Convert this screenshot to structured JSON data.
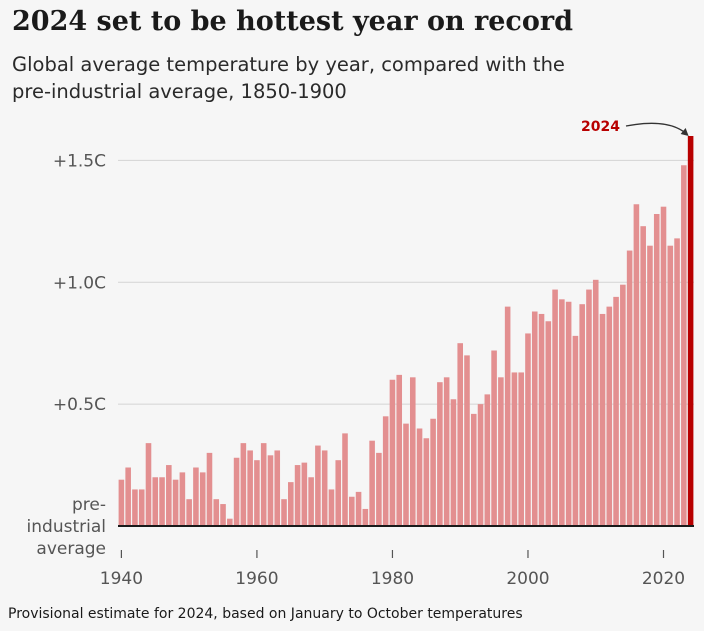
{
  "chart_data": {
    "type": "bar",
    "title": "2024 set to be hottest year on record",
    "subtitle_lines": [
      "Global average temperature by year, compared with the",
      "pre-industrial average, 1850-1900"
    ],
    "years": [
      1940,
      1941,
      1942,
      1943,
      1944,
      1945,
      1946,
      1947,
      1948,
      1949,
      1950,
      1951,
      1952,
      1953,
      1954,
      1955,
      1956,
      1957,
      1958,
      1959,
      1960,
      1961,
      1962,
      1963,
      1964,
      1965,
      1966,
      1967,
      1968,
      1969,
      1970,
      1971,
      1972,
      1973,
      1974,
      1975,
      1976,
      1977,
      1978,
      1979,
      1980,
      1981,
      1982,
      1983,
      1984,
      1985,
      1986,
      1987,
      1988,
      1989,
      1990,
      1991,
      1992,
      1993,
      1994,
      1995,
      1996,
      1997,
      1998,
      1999,
      2000,
      2001,
      2002,
      2003,
      2004,
      2005,
      2006,
      2007,
      2008,
      2009,
      2010,
      2011,
      2012,
      2013,
      2014,
      2015,
      2016,
      2017,
      2018,
      2019,
      2020,
      2021,
      2022,
      2023,
      2024
    ],
    "values": [
      0.19,
      0.24,
      0.15,
      0.15,
      0.34,
      0.2,
      0.2,
      0.25,
      0.19,
      0.22,
      0.11,
      0.24,
      0.22,
      0.3,
      0.11,
      0.09,
      0.03,
      0.28,
      0.34,
      0.31,
      0.27,
      0.34,
      0.29,
      0.31,
      0.11,
      0.18,
      0.25,
      0.26,
      0.2,
      0.33,
      0.31,
      0.15,
      0.27,
      0.38,
      0.12,
      0.14,
      0.07,
      0.35,
      0.3,
      0.45,
      0.6,
      0.62,
      0.42,
      0.61,
      0.4,
      0.36,
      0.44,
      0.59,
      0.61,
      0.52,
      0.75,
      0.7,
      0.46,
      0.5,
      0.54,
      0.72,
      0.61,
      0.9,
      0.63,
      0.63,
      0.79,
      0.88,
      0.87,
      0.84,
      0.97,
      0.93,
      0.92,
      0.78,
      0.91,
      0.97,
      1.01,
      0.87,
      0.9,
      0.94,
      0.99,
      1.13,
      1.32,
      1.23,
      1.15,
      1.28,
      1.31,
      1.15,
      1.18,
      1.48,
      1.6
    ],
    "ylim": [
      0,
      1.6
    ],
    "yticks": [
      0.5,
      1.0,
      1.5
    ],
    "ytick_labels": [
      "+0.5C",
      "+1.0C",
      "+1.5C"
    ],
    "baseline_label_lines": [
      "pre-",
      "industrial",
      "average"
    ],
    "xticks": [
      1940,
      1960,
      1980,
      2000,
      2020
    ],
    "xtick_labels": [
      "1940",
      "1960",
      "1980",
      "2000",
      "2020"
    ],
    "highlight_year": 2024,
    "highlight_label": "2024",
    "grid": true,
    "colors": {
      "bar": "#e38f90",
      "bar_highlight": "#b80000",
      "grid": "#d4d4d4",
      "baseline": "#1a1a1a"
    }
  },
  "footnote": "Provisional estimate for 2024, based on January to October temperatures"
}
